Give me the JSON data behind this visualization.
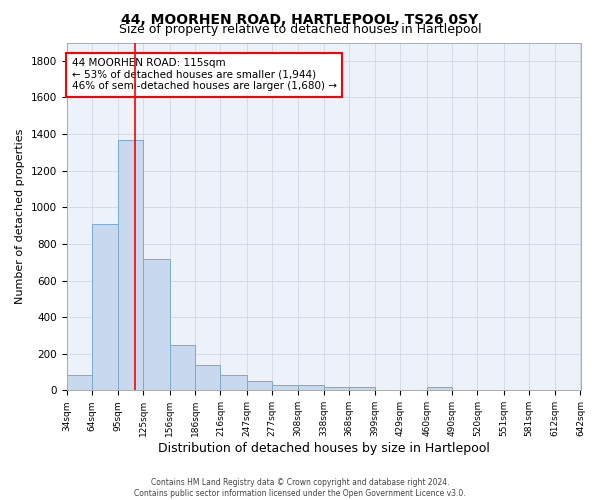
{
  "title": "44, MOORHEN ROAD, HARTLEPOOL, TS26 0SY",
  "subtitle": "Size of property relative to detached houses in Hartlepool",
  "xlabel": "Distribution of detached houses by size in Hartlepool",
  "ylabel": "Number of detached properties",
  "footer_line1": "Contains HM Land Registry data © Crown copyright and database right 2024.",
  "footer_line2": "Contains public sector information licensed under the Open Government Licence v3.0.",
  "bar_edges": [
    34,
    64,
    95,
    125,
    156,
    186,
    216,
    247,
    277,
    308,
    338,
    368,
    399,
    429,
    460,
    490,
    520,
    551,
    581,
    612,
    642
  ],
  "bar_heights": [
    85,
    910,
    1370,
    715,
    250,
    140,
    85,
    50,
    30,
    30,
    18,
    18,
    0,
    0,
    20,
    0,
    0,
    0,
    0,
    0
  ],
  "bar_color": "#c8d8ee",
  "bar_edgecolor": "#7aaad0",
  "grid_color": "#d0d8e8",
  "vline_x": 115,
  "vline_color": "red",
  "annotation_line1": "44 MOORHEN ROAD: 115sqm",
  "annotation_line2": "← 53% of detached houses are smaller (1,944)",
  "annotation_line3": "46% of semi-detached houses are larger (1,680) →",
  "annotation_box_color": "red",
  "ylim": [
    0,
    1900
  ],
  "bg_color": "#edf2fa",
  "title_fontsize": 10,
  "subtitle_fontsize": 9,
  "xlabel_fontsize": 9,
  "ylabel_fontsize": 8,
  "tick_labels": [
    "34sqm",
    "64sqm",
    "95sqm",
    "125sqm",
    "156sqm",
    "186sqm",
    "216sqm",
    "247sqm",
    "277sqm",
    "308sqm",
    "338sqm",
    "368sqm",
    "399sqm",
    "429sqm",
    "460sqm",
    "490sqm",
    "520sqm",
    "551sqm",
    "581sqm",
    "612sqm",
    "642sqm"
  ]
}
